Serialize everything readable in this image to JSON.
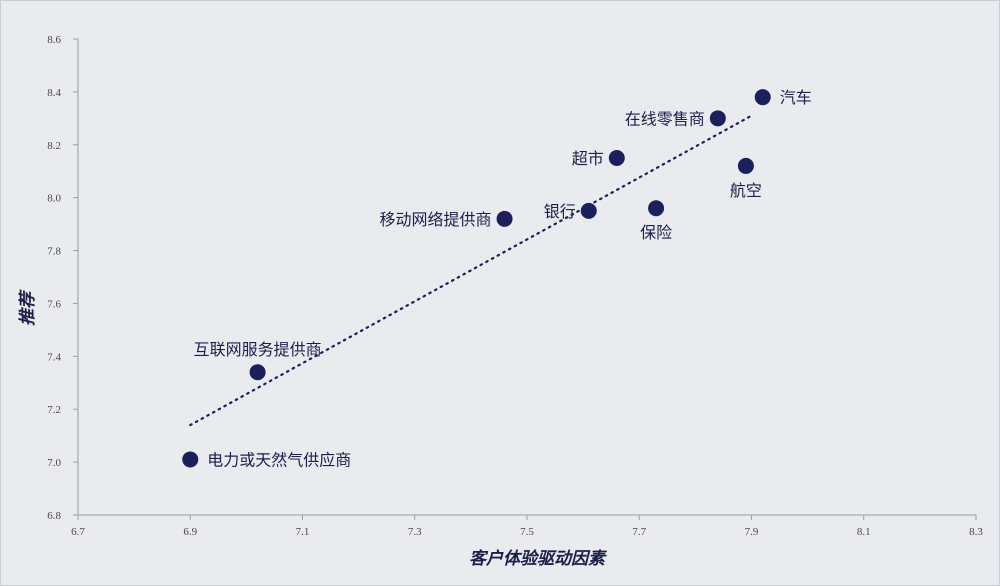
{
  "chart_data": {
    "type": "scatter",
    "title": "",
    "xlabel": "客户体验驱动因素",
    "ylabel": "推荐",
    "xlim": [
      6.7,
      8.3
    ],
    "ylim": [
      6.8,
      8.6
    ],
    "x_ticks": [
      "6.7",
      "6.9",
      "7.1",
      "7.3",
      "7.5",
      "7.7",
      "7.9",
      "8.1",
      "8.3"
    ],
    "y_ticks": [
      "6.8",
      "7.0",
      "7.2",
      "7.4",
      "7.6",
      "7.8",
      "8.0",
      "8.2",
      "8.4",
      "8.6"
    ],
    "grid": false,
    "trendline": {
      "style": "dotted",
      "from": [
        6.9,
        7.14
      ],
      "to": [
        7.9,
        8.31
      ]
    },
    "colors": {
      "point": "#1b1f5c",
      "label": "#1b1f4a",
      "trendline": "#1b1f5c",
      "background": "#e9ebef"
    },
    "points": [
      {
        "label": "汽车",
        "x": 7.92,
        "y": 8.38,
        "label_pos": "right"
      },
      {
        "label": "在线零售商",
        "x": 7.84,
        "y": 8.3,
        "label_pos": "left"
      },
      {
        "label": "超市",
        "x": 7.66,
        "y": 8.15,
        "label_pos": "left"
      },
      {
        "label": "航空",
        "x": 7.89,
        "y": 8.12,
        "label_pos": "below"
      },
      {
        "label": "银行",
        "x": 7.61,
        "y": 7.95,
        "label_pos": "left"
      },
      {
        "label": "保险",
        "x": 7.73,
        "y": 7.96,
        "label_pos": "below"
      },
      {
        "label": "移动网络提供商",
        "x": 7.46,
        "y": 7.92,
        "label_pos": "left"
      },
      {
        "label": "互联网服务提供商",
        "x": 7.02,
        "y": 7.34,
        "label_pos": "above"
      },
      {
        "label": "电力或天然气供应商",
        "x": 6.9,
        "y": 7.01,
        "label_pos": "right"
      }
    ]
  }
}
